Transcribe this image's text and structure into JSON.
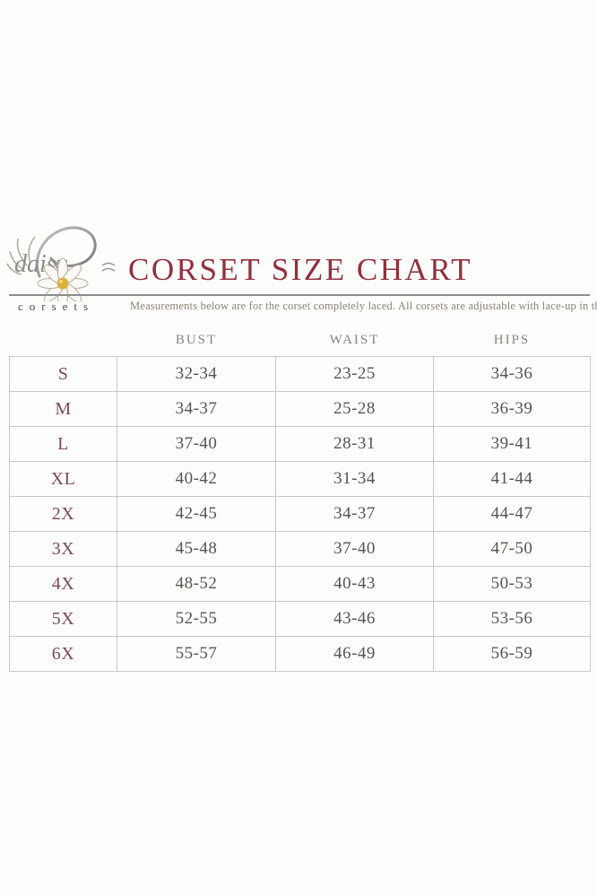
{
  "page": {
    "background_color": "#fdfdfc"
  },
  "logo": {
    "script_text": "daisy",
    "wordmark_text": "corsets",
    "flower_center_color": "#ddaf3e"
  },
  "header": {
    "title": "CORSET SIZE CHART",
    "title_color": "#93303d",
    "subtitle": "Measurements below are for the corset completely laced. All corsets are adjustable with lace-up in the back.",
    "subtitle_color": "#8b8477"
  },
  "table": {
    "columns": [
      "",
      "BUST",
      "WAIST",
      "HIPS"
    ],
    "rows": [
      {
        "size": "S",
        "bust": "32-34",
        "waist": "23-25",
        "hips": "34-36"
      },
      {
        "size": "M",
        "bust": "34-37",
        "waist": "25-28",
        "hips": "36-39"
      },
      {
        "size": "L",
        "bust": "37-40",
        "waist": "28-31",
        "hips": "39-41"
      },
      {
        "size": "XL",
        "bust": "40-42",
        "waist": "31-34",
        "hips": "41-44"
      },
      {
        "size": "2X",
        "bust": "42-45",
        "waist": "34-37",
        "hips": "44-47"
      },
      {
        "size": "3X",
        "bust": "45-48",
        "waist": "37-40",
        "hips": "47-50"
      },
      {
        "size": "4X",
        "bust": "48-52",
        "waist": "40-43",
        "hips": "50-53"
      },
      {
        "size": "5X",
        "bust": "52-55",
        "waist": "43-46",
        "hips": "53-56"
      },
      {
        "size": "6X",
        "bust": "55-57",
        "waist": "46-49",
        "hips": "56-59"
      }
    ],
    "size_label_color": "#7c4b55",
    "value_color": "#56544e",
    "border_color": "#c9c9c9",
    "header_color": "#87847c"
  }
}
